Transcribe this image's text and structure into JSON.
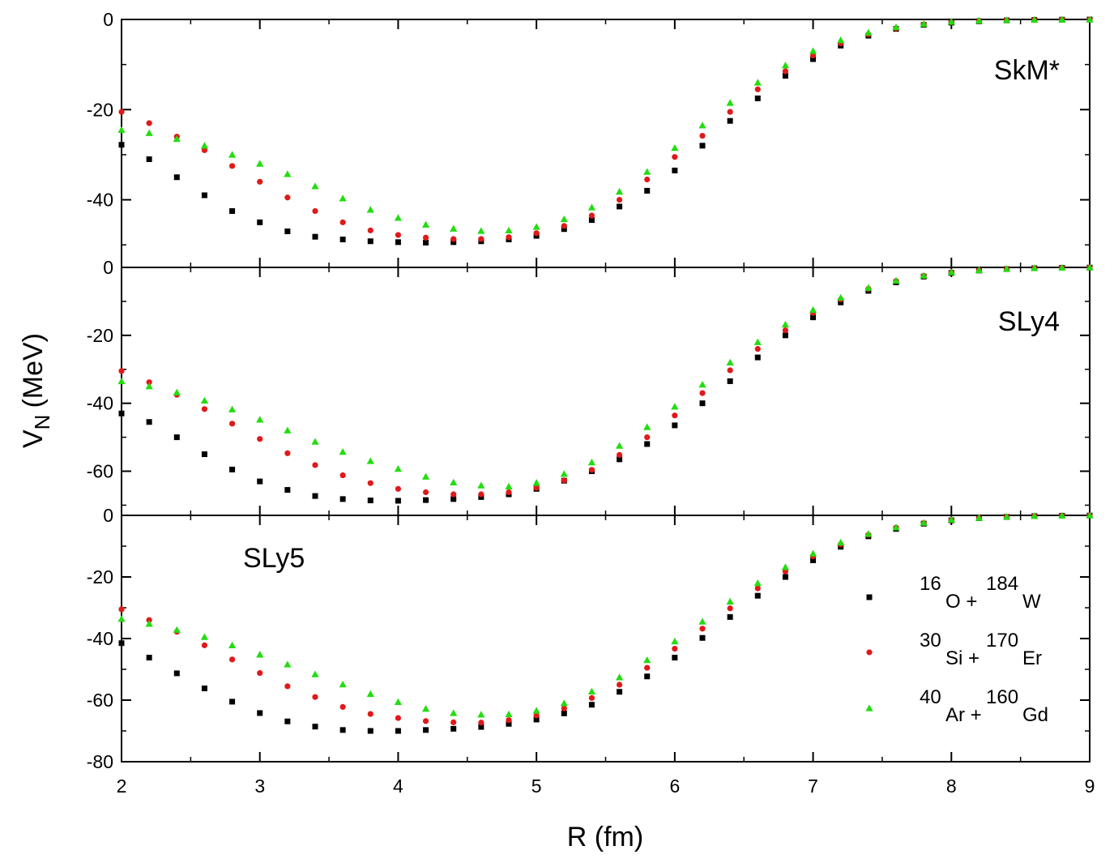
{
  "chart_data": {
    "type": "scatter",
    "xlabel": "R (fm)",
    "ylabel_main": "V",
    "ylabel_sub": "N",
    "ylabel_unit": "(MeV)",
    "xlim": [
      2,
      9
    ],
    "xticks": [
      2,
      3,
      4,
      5,
      6,
      7,
      8,
      9
    ],
    "x": [
      2.0,
      2.2,
      2.4,
      2.6,
      2.8,
      3.0,
      3.2,
      3.4,
      3.6,
      3.8,
      4.0,
      4.2,
      4.4,
      4.6,
      4.8,
      5.0,
      5.2,
      5.4,
      5.6,
      5.8,
      6.0,
      6.2,
      6.4,
      6.6,
      6.8,
      7.0,
      7.2,
      7.4,
      7.6,
      7.8,
      8.0,
      8.2,
      8.4,
      8.6,
      8.8,
      9.0
    ],
    "colors": {
      "s1": "#000000",
      "s2": "#e11919",
      "s3": "#22dd0f"
    },
    "legend": [
      {
        "key": "s1",
        "marker": "square",
        "a1": "16",
        "e1": "O +",
        "a2": "184",
        "e2": "W"
      },
      {
        "key": "s2",
        "marker": "circle",
        "a1": "30",
        "e1": "Si +",
        "a2": "170",
        "e2": "Er"
      },
      {
        "key": "s3",
        "marker": "triangle",
        "a1": "40",
        "e1": "Ar +",
        "a2": "160",
        "e2": "Gd"
      }
    ],
    "panels": [
      {
        "name": "SkM*",
        "ylim": [
          -55,
          0
        ],
        "yticks": [
          0,
          -20,
          -40
        ],
        "ytick_labels": [
          "0",
          "-20",
          "-40"
        ],
        "series": [
          {
            "key": "s1",
            "values": [
              -27.8,
              -31.0,
              -35.0,
              -39.0,
              -42.5,
              -45.0,
              -47.0,
              -48.2,
              -48.8,
              -49.2,
              -49.4,
              -49.5,
              -49.4,
              -49.2,
              -48.8,
              -48.0,
              -46.5,
              -44.5,
              -41.5,
              -38.0,
              -33.5,
              -28.0,
              -22.5,
              -17.5,
              -12.5,
              -8.8,
              -5.8,
              -3.6,
              -2.1,
              -1.2,
              -0.7,
              -0.4,
              -0.2,
              -0.1,
              -0.05,
              -0.02
            ]
          },
          {
            "key": "s2",
            "values": [
              -20.5,
              -23.0,
              -26.0,
              -29.0,
              -32.5,
              -36.0,
              -39.5,
              -42.5,
              -45.0,
              -46.8,
              -47.8,
              -48.4,
              -48.7,
              -48.7,
              -48.3,
              -47.4,
              -45.8,
              -43.5,
              -40.0,
              -35.5,
              -30.5,
              -25.8,
              -20.5,
              -15.5,
              -11.5,
              -8.0,
              -5.3,
              -3.3,
              -2.0,
              -1.1,
              -0.6,
              -0.3,
              -0.15,
              -0.08,
              -0.04,
              -0.02
            ]
          },
          {
            "key": "s3",
            "values": [
              -24.5,
              -25.2,
              -26.5,
              -28.0,
              -30.0,
              -32.0,
              -34.3,
              -37.0,
              -39.7,
              -42.2,
              -44.0,
              -45.5,
              -46.4,
              -46.9,
              -46.8,
              -46.0,
              -44.3,
              -41.7,
              -38.2,
              -33.8,
              -28.5,
              -23.5,
              -18.5,
              -14.0,
              -10.2,
              -7.0,
              -4.6,
              -2.9,
              -1.7,
              -1.0,
              -0.5,
              -0.25,
              -0.12,
              -0.06,
              -0.03,
              -0.01
            ]
          }
        ]
      },
      {
        "name": "SLy4",
        "ylim": [
          -73,
          0
        ],
        "yticks": [
          0,
          -20,
          -40,
          -60
        ],
        "ytick_labels": [
          "0",
          "-20",
          "-40",
          "-60"
        ],
        "series": [
          {
            "key": "s1",
            "values": [
              -43.0,
              -45.5,
              -50.0,
              -55.0,
              -59.5,
              -63.0,
              -65.5,
              -67.3,
              -68.2,
              -68.6,
              -68.7,
              -68.5,
              -68.2,
              -67.6,
              -66.8,
              -65.2,
              -62.8,
              -60.0,
              -56.5,
              -52.0,
              -46.5,
              -40.0,
              -33.5,
              -26.5,
              -20.0,
              -14.7,
              -10.3,
              -6.9,
              -4.4,
              -2.7,
              -1.6,
              -0.9,
              -0.5,
              -0.25,
              -0.12,
              -0.05
            ]
          },
          {
            "key": "s2",
            "values": [
              -30.5,
              -33.8,
              -37.5,
              -41.7,
              -46.0,
              -50.5,
              -54.7,
              -58.2,
              -61.2,
              -63.5,
              -65.2,
              -66.2,
              -66.8,
              -66.8,
              -66.2,
              -64.9,
              -62.7,
              -59.6,
              -55.2,
              -50.0,
              -43.6,
              -37.0,
              -30.3,
              -24.0,
              -18.5,
              -13.4,
              -9.4,
              -6.3,
              -4.0,
              -2.5,
              -1.5,
              -0.8,
              -0.45,
              -0.22,
              -0.1,
              -0.04
            ]
          },
          {
            "key": "s3",
            "values": [
              -33.5,
              -35.0,
              -36.8,
              -39.2,
              -41.8,
              -44.8,
              -48.0,
              -51.3,
              -54.3,
              -57.0,
              -59.3,
              -61.6,
              -63.3,
              -64.2,
              -64.5,
              -63.4,
              -60.8,
              -57.4,
              -52.5,
              -47.0,
              -41.0,
              -34.5,
              -28.0,
              -22.0,
              -16.8,
              -12.5,
              -8.9,
              -6.0,
              -3.9,
              -2.4,
              -1.4,
              -0.8,
              -0.42,
              -0.2,
              -0.09,
              -0.03
            ]
          }
        ]
      },
      {
        "name": "SLy5",
        "ylim": [
          -80,
          0
        ],
        "yticks": [
          0,
          -20,
          -40,
          -60,
          -80
        ],
        "ytick_labels": [
          "0",
          "-20",
          "-40",
          "-60",
          "-80"
        ],
        "series": [
          {
            "key": "s1",
            "values": [
              -41.5,
              -46.2,
              -51.3,
              -56.2,
              -60.5,
              -64.2,
              -66.9,
              -68.6,
              -69.7,
              -70.0,
              -70.0,
              -69.7,
              -69.3,
              -68.7,
              -67.7,
              -66.3,
              -64.3,
              -61.5,
              -57.3,
              -52.3,
              -46.2,
              -39.8,
              -33.0,
              -26.1,
              -20.0,
              -14.6,
              -10.2,
              -6.8,
              -4.4,
              -2.7,
              -1.6,
              -0.9,
              -0.5,
              -0.25,
              -0.12,
              -0.05
            ]
          },
          {
            "key": "s2",
            "values": [
              -30.5,
              -34.0,
              -37.8,
              -42.2,
              -46.8,
              -51.2,
              -55.5,
              -59.0,
              -62.2,
              -64.5,
              -65.8,
              -66.8,
              -67.2,
              -67.3,
              -66.5,
              -65.0,
              -62.7,
              -59.3,
              -55.0,
              -49.5,
              -43.3,
              -36.8,
              -30.2,
              -23.7,
              -18.2,
              -13.3,
              -9.4,
              -6.3,
              -4.0,
              -2.5,
              -1.5,
              -0.8,
              -0.45,
              -0.22,
              -0.1,
              -0.04
            ]
          },
          {
            "key": "s3",
            "values": [
              -33.6,
              -35.2,
              -37.2,
              -39.5,
              -42.2,
              -45.2,
              -48.4,
              -51.6,
              -54.9,
              -58.0,
              -60.6,
              -62.8,
              -64.2,
              -64.7,
              -64.6,
              -63.4,
              -61.0,
              -57.2,
              -52.6,
              -47.0,
              -40.9,
              -34.5,
              -28.0,
              -22.0,
              -16.8,
              -12.4,
              -8.8,
              -6.0,
              -3.9,
              -2.4,
              -1.4,
              -0.8,
              -0.42,
              -0.2,
              -0.09,
              -0.03
            ]
          }
        ]
      }
    ]
  }
}
